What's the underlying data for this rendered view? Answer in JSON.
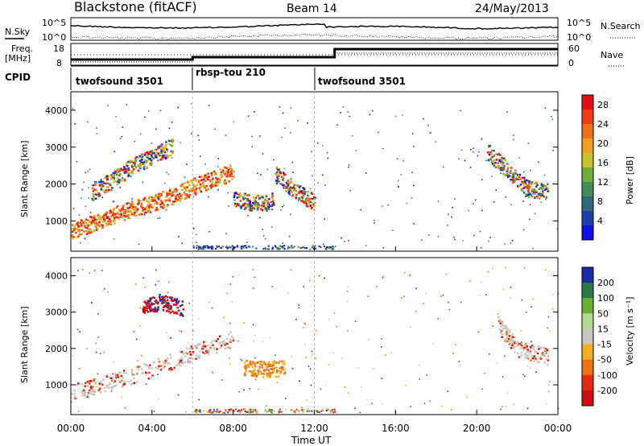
{
  "header": {
    "title": "Blackstone (fitACF)",
    "beam": "Beam 14",
    "date": "24/May/2013"
  },
  "panels": {
    "noise_left_label": "N.Sky",
    "noise_right_label": "N.Search",
    "noise_ticks_left": [
      "10^5",
      "10^0"
    ],
    "noise_ticks_right": [
      "10^5",
      "10^0"
    ],
    "freq_label_1": "Freq.",
    "freq_label_2": "[MHz]",
    "freq_ticks": [
      "18",
      "8"
    ],
    "nave_label": "Nave",
    "nave_ticks": [
      "60",
      "0"
    ],
    "cpid_label": "CPID",
    "cpid_segments": [
      {
        "label": "twofsound 3501",
        "start_hr": 0,
        "end_hr": 6
      },
      {
        "label": "rbsp-tou 210",
        "start_hr": 6,
        "end_hr": 12
      },
      {
        "label": "twofsound 3501",
        "start_hr": 12,
        "end_hr": 24
      }
    ]
  },
  "chart_data": [
    {
      "type": "heatmap",
      "title": "",
      "xlabel": "Time UT",
      "ylabel": "Slant Range [km]",
      "xlim": [
        0,
        24
      ],
      "ylim": [
        180,
        4500
      ],
      "x_ticks": [
        "00:00",
        "04:00",
        "08:00",
        "12:00",
        "16:00",
        "20:00",
        "00:00"
      ],
      "y_ticks": [
        1000,
        2000,
        3000,
        4000
      ],
      "colorbar": {
        "label": "Power [dB]",
        "ticks": [
          4,
          8,
          12,
          16,
          20,
          24,
          28
        ],
        "range": [
          0,
          30
        ],
        "colors": [
          "#1010e0",
          "#1c3faa",
          "#2e6a7a",
          "#3f8f57",
          "#6fae3a",
          "#c8c22a",
          "#f0a020",
          "#f07018",
          "#f03a10",
          "#e01010"
        ]
      },
      "series": [
        {
          "feature": "main band",
          "x": [
            0,
            1,
            2,
            3,
            4,
            5,
            6,
            7,
            8
          ],
          "y": [
            700,
            950,
            1150,
            1350,
            1500,
            1700,
            1950,
            2150,
            2350
          ]
        },
        {
          "feature": "upper band",
          "x": [
            1,
            2,
            3,
            4,
            5
          ],
          "y": [
            1800,
            2100,
            2500,
            2750,
            3050
          ]
        },
        {
          "feature": "midday blob",
          "x": [
            8,
            9,
            10
          ],
          "y": [
            1600,
            1500,
            1550
          ]
        },
        {
          "feature": "descending trail",
          "x": [
            10,
            11,
            12
          ],
          "y": [
            2300,
            1850,
            1500
          ]
        },
        {
          "feature": "evening band",
          "x": [
            20.5,
            21.5,
            22.5,
            23.5
          ],
          "y": [
            2900,
            2400,
            1900,
            1800
          ]
        }
      ]
    },
    {
      "type": "heatmap",
      "title": "",
      "xlabel": "Time UT",
      "ylabel": "Slant Range [km]",
      "xlim": [
        0,
        24
      ],
      "ylim": [
        180,
        4500
      ],
      "x_ticks": [
        "00:00",
        "04:00",
        "08:00",
        "12:00",
        "16:00",
        "20:00",
        "00:00"
      ],
      "y_ticks": [
        1000,
        2000,
        3000,
        4000
      ],
      "colorbar": {
        "label": "Velocity [m s⁻¹]",
        "ticks": [
          200,
          100,
          50,
          15,
          -15,
          -50,
          -100,
          -200
        ],
        "colors": [
          "#1a2aa8",
          "#2a7a4a",
          "#6ab030",
          "#b0d890",
          "#c8c8c0",
          "#f0b020",
          "#f07018",
          "#e82a10",
          "#d01010"
        ]
      },
      "series": [
        {
          "feature": "ground scatter band",
          "x": [
            0,
            2,
            4,
            6,
            8
          ],
          "y": [
            800,
            1100,
            1450,
            1900,
            2300
          ]
        },
        {
          "feature": "red cluster",
          "x": [
            3.5,
            4.5,
            5.5
          ],
          "y": [
            3200,
            3300,
            3100
          ]
        },
        {
          "feature": "orange blob",
          "x": [
            8.5,
            9.5,
            10.5
          ],
          "y": [
            1500,
            1450,
            1480
          ]
        },
        {
          "feature": "evening band",
          "x": [
            21,
            22,
            23.5
          ],
          "y": [
            2700,
            2000,
            1800
          ]
        }
      ]
    }
  ]
}
